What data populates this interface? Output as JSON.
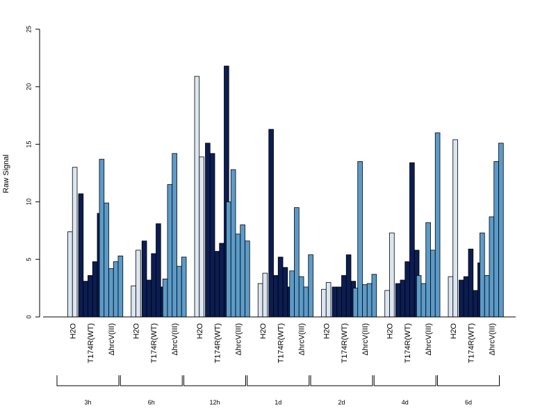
{
  "chart_data": {
    "type": "bar",
    "title": "",
    "xlabel": "",
    "ylabel": "Raw Signal",
    "ylim": [
      0,
      25
    ],
    "yticks": [
      0,
      5,
      10,
      15,
      20,
      25
    ],
    "grid": false,
    "legend": "none",
    "colors": {
      "H2O": "#dbe6f2",
      "T174R(WT)": "#0b1d52",
      "ΔhrcV(III)": "#5b9bc9"
    },
    "conditions": [
      "H2O",
      "T174R(WT)",
      "ΔhrcV(III)"
    ],
    "groups": [
      {
        "time": "3h",
        "conditions": [
          {
            "label": "H2O",
            "values": [
              7.4,
              13.0
            ]
          },
          {
            "label": "T174R(WT)",
            "values": [
              10.7,
              3.1,
              3.6,
              4.8,
              9.0
            ]
          },
          {
            "label": "ΔhrcV(III)",
            "values": [
              13.7,
              9.9,
              4.2,
              4.8,
              5.3
            ]
          }
        ]
      },
      {
        "time": "6h",
        "conditions": [
          {
            "label": "H2O",
            "values": [
              2.7,
              5.8
            ]
          },
          {
            "label": "T174R(WT)",
            "values": [
              6.6,
              3.2,
              5.5,
              8.1,
              2.6
            ]
          },
          {
            "label": "ΔhrcV(III)",
            "values": [
              3.3,
              11.5,
              14.2,
              4.4,
              5.2
            ]
          }
        ]
      },
      {
        "time": "12h",
        "conditions": [
          {
            "label": "H2O",
            "values": [
              20.9,
              13.9
            ]
          },
          {
            "label": "T174R(WT)",
            "values": [
              15.1,
              14.2,
              5.7,
              6.4,
              21.8
            ]
          },
          {
            "label": "ΔhrcV(III)",
            "values": [
              10.0,
              12.8,
              7.2,
              8.0,
              6.6
            ]
          }
        ]
      },
      {
        "time": "1d",
        "conditions": [
          {
            "label": "H2O",
            "values": [
              2.9,
              3.8
            ]
          },
          {
            "label": "T174R(WT)",
            "values": [
              16.3,
              3.6,
              5.2,
              4.3,
              2.6
            ]
          },
          {
            "label": "ΔhrcV(III)",
            "values": [
              4.0,
              9.5,
              3.5,
              2.6,
              5.4
            ]
          }
        ]
      },
      {
        "time": "2d",
        "conditions": [
          {
            "label": "H2O",
            "values": [
              2.4,
              3.0
            ]
          },
          {
            "label": "T174R(WT)",
            "values": [
              2.6,
              2.6,
              3.6,
              5.4,
              3.1
            ]
          },
          {
            "label": "ΔhrcV(III)",
            "values": [
              2.5,
              13.5,
              2.8,
              2.9,
              3.7
            ]
          }
        ]
      },
      {
        "time": "4d",
        "conditions": [
          {
            "label": "H2O",
            "values": [
              2.3,
              7.3
            ]
          },
          {
            "label": "T174R(WT)",
            "values": [
              2.9,
              3.2,
              4.8,
              13.4,
              5.8
            ]
          },
          {
            "label": "ΔhrcV(III)",
            "values": [
              3.6,
              2.9,
              8.2,
              5.8,
              16.0
            ]
          }
        ]
      },
      {
        "time": "6d",
        "conditions": [
          {
            "label": "H2O",
            "values": [
              3.5,
              15.4
            ]
          },
          {
            "label": "T174R(WT)",
            "values": [
              3.2,
              3.5,
              5.9,
              2.3,
              4.7
            ]
          },
          {
            "label": "ΔhrcV(III)",
            "values": [
              7.3,
              3.6,
              8.7,
              13.5,
              15.1
            ]
          }
        ]
      }
    ]
  }
}
